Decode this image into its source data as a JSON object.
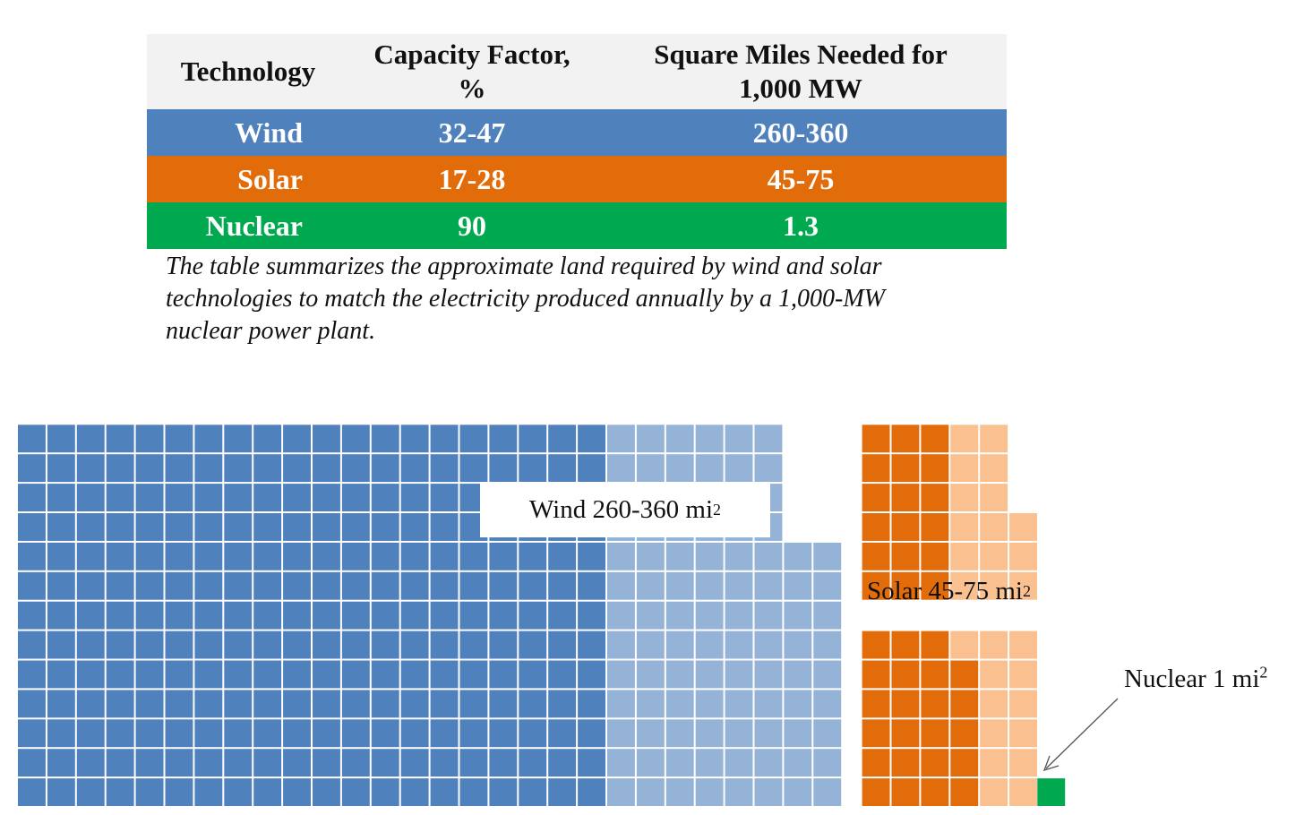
{
  "table": {
    "headers": [
      "Technology",
      "Capacity Factor, %",
      "Square Miles Needed for 1,000 MW"
    ],
    "rows": [
      {
        "technology": "Wind",
        "capacity_factor": "32-47",
        "square_miles": "260-360",
        "color": "#4f81bd"
      },
      {
        "technology": "Solar",
        "capacity_factor": "17-28",
        "square_miles": "45-75",
        "color": "#e36c0a"
      },
      {
        "technology": "Nuclear",
        "capacity_factor": "90",
        "square_miles": "1.3",
        "color": "#00a94f"
      }
    ]
  },
  "caption": "The table summarizes the approximate land required by wind and solar technologies to match the electricity produced annually by a 1,000-MW nuclear power plant.",
  "chart_data": {
    "type": "waffle",
    "unit": "1 square = 1 mi²",
    "series": [
      {
        "name": "Wind 260-360 mi²",
        "label_text": "Wind 260-360 mi",
        "low": 260,
        "high": 360,
        "dark_color": "#4f81bd",
        "light_color": "#95b3d7"
      },
      {
        "name": "Solar 45-75 mi²",
        "label_text": "Solar 45-75 mi",
        "low": 45,
        "high": 75,
        "dark_color": "#e36c0a",
        "light_color": "#fac090"
      },
      {
        "name": "Nuclear 1 mi²",
        "label_text": "Nuclear 1 mi",
        "low": 1,
        "high": 1,
        "dark_color": "#00a94f",
        "light_color": "#00a94f"
      }
    ],
    "superscript": "2"
  }
}
